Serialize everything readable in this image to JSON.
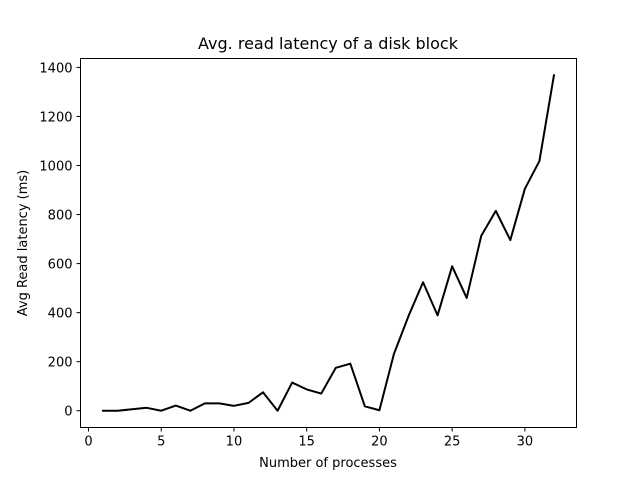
{
  "chart_data": {
    "type": "line",
    "title": "Avg. read latency of a disk block",
    "xlabel": "Number of processes",
    "ylabel": "Avg Read latency (ms)",
    "xlim": [
      -0.55,
      33.55
    ],
    "ylim": [
      -68.35,
      1436.35
    ],
    "xticks": [
      0,
      5,
      10,
      15,
      20,
      25,
      30
    ],
    "yticks": [
      0,
      200,
      400,
      600,
      800,
      1000,
      1200,
      1400
    ],
    "grid": false,
    "series": [
      {
        "color": "#000000",
        "x": [
          1,
          2,
          3,
          4,
          5,
          6,
          7,
          8,
          9,
          10,
          11,
          12,
          13,
          14,
          15,
          16,
          17,
          18,
          19,
          20,
          21,
          22,
          23,
          24,
          25,
          26,
          27,
          28,
          29,
          30,
          31,
          32
        ],
        "y": [
          0,
          0,
          6,
          12,
          0,
          21,
          0,
          30,
          30,
          20,
          32,
          75,
          0,
          115,
          87,
          70,
          175,
          192,
          18,
          2,
          232,
          386,
          524,
          389,
          589,
          460,
          713,
          815,
          696,
          905,
          1018,
          1368
        ]
      }
    ]
  }
}
